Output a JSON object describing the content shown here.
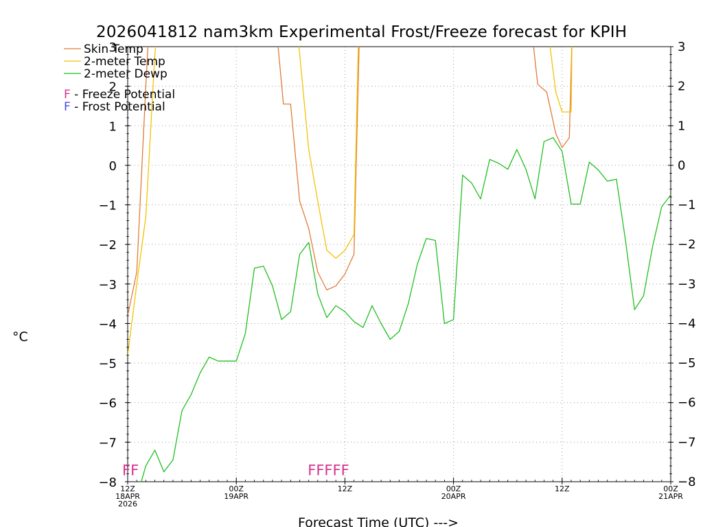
{
  "colors": {
    "skin": "#e07a3a",
    "temp2m": "#f2c200",
    "dewp2m": "#1fbf1f",
    "freeze": "#d4338f",
    "frost": "#4a4ae0"
  },
  "chart_data": {
    "type": "line",
    "title": "2026041812 nam3km Experimental Frost/Freeze forecast for KPIH",
    "xlabel": "Forecast Time (UTC) --->",
    "ylabel": "°C",
    "ylim": [
      -8,
      3
    ],
    "xlim": [
      0,
      60
    ],
    "grid": true,
    "y_ticks": [
      -8,
      -7,
      -6,
      -5,
      -4,
      -3,
      -2,
      -1,
      0,
      1,
      2,
      3
    ],
    "y_tick_labels": [
      "−8",
      "−7",
      "−6",
      "−5",
      "−4",
      "−3",
      "−2",
      "−1",
      "0",
      "1",
      "2",
      "3"
    ],
    "x_ticks": [
      {
        "x": 0,
        "lines": [
          "12Z",
          "18APR",
          "2026"
        ]
      },
      {
        "x": 12,
        "lines": [
          "00Z",
          "19APR"
        ]
      },
      {
        "x": 24,
        "lines": [
          "12Z"
        ]
      },
      {
        "x": 36,
        "lines": [
          "00Z",
          "20APR"
        ]
      },
      {
        "x": 48,
        "lines": [
          "12Z"
        ]
      },
      {
        "x": 60,
        "lines": [
          "00Z",
          "21APR"
        ]
      }
    ],
    "legend": {
      "placement": "top-left",
      "series": [
        {
          "key": "skin",
          "label": "Skin Temp"
        },
        {
          "key": "temp2m",
          "label": "2-meter Temp"
        },
        {
          "key": "dewp2m",
          "label": "2-meter Dewp"
        }
      ],
      "flags": [
        {
          "key": "freeze",
          "letter": "F",
          "text": " - Freeze Potential"
        },
        {
          "key": "frost",
          "letter": "F",
          "text": " - Frost Potential"
        }
      ]
    },
    "series": [
      {
        "name": "Skin Temp",
        "key": "skin",
        "points": [
          [
            0,
            -3.8
          ],
          [
            1,
            -2.7
          ],
          [
            2,
            2.0
          ],
          [
            2.3,
            3.3
          ],
          [
            16.5,
            3.3
          ],
          [
            17.2,
            1.55
          ],
          [
            18,
            1.55
          ],
          [
            19,
            -0.9
          ],
          [
            20,
            -1.6
          ],
          [
            21,
            -2.7
          ],
          [
            22,
            -3.15
          ],
          [
            23,
            -3.05
          ],
          [
            24,
            -2.75
          ],
          [
            25,
            -2.25
          ],
          [
            25.6,
            3.3
          ],
          [
            44.7,
            3.3
          ],
          [
            45.3,
            2.05
          ],
          [
            46.3,
            1.85
          ],
          [
            47.3,
            0.8
          ],
          [
            48,
            0.45
          ],
          [
            48.8,
            0.7
          ],
          [
            49.1,
            3.3
          ]
        ]
      },
      {
        "name": "2-meter Temp",
        "key": "temp2m",
        "points": [
          [
            0,
            -4.8
          ],
          [
            1,
            -3.0
          ],
          [
            2,
            -1.3
          ],
          [
            3,
            2.8
          ],
          [
            3.2,
            3.3
          ],
          [
            18.8,
            3.3
          ],
          [
            20,
            0.4
          ],
          [
            21,
            -0.9
          ],
          [
            22,
            -2.15
          ],
          [
            23,
            -2.35
          ],
          [
            24,
            -2.15
          ],
          [
            25,
            -1.75
          ],
          [
            25.5,
            3.3
          ],
          [
            46.5,
            3.3
          ],
          [
            47.3,
            1.85
          ],
          [
            48,
            1.35
          ],
          [
            49,
            1.35
          ],
          [
            49.1,
            3.3
          ]
        ]
      },
      {
        "name": "2-meter Dewp",
        "key": "dewp2m",
        "points": [
          [
            1.5,
            -8.0
          ],
          [
            2,
            -7.6
          ],
          [
            3,
            -7.2
          ],
          [
            4,
            -7.75
          ],
          [
            5,
            -7.45
          ],
          [
            6,
            -6.2
          ],
          [
            7,
            -5.8
          ],
          [
            8,
            -5.25
          ],
          [
            9,
            -4.85
          ],
          [
            10,
            -4.95
          ],
          [
            11,
            -4.95
          ],
          [
            12,
            -4.95
          ],
          [
            13,
            -4.25
          ],
          [
            14,
            -2.6
          ],
          [
            15,
            -2.55
          ],
          [
            16,
            -3.05
          ],
          [
            17,
            -3.9
          ],
          [
            18,
            -3.7
          ],
          [
            19,
            -2.25
          ],
          [
            20,
            -1.95
          ],
          [
            21,
            -3.25
          ],
          [
            22,
            -3.85
          ],
          [
            23,
            -3.55
          ],
          [
            24,
            -3.7
          ],
          [
            25,
            -3.95
          ],
          [
            26,
            -4.1
          ],
          [
            27,
            -3.55
          ],
          [
            28,
            -4.0
          ],
          [
            29,
            -4.4
          ],
          [
            30,
            -4.2
          ],
          [
            31,
            -3.5
          ],
          [
            32,
            -2.5
          ],
          [
            33,
            -1.85
          ],
          [
            34,
            -1.9
          ],
          [
            35,
            -4.0
          ],
          [
            36,
            -3.9
          ],
          [
            37,
            -0.25
          ],
          [
            38,
            -0.45
          ],
          [
            39,
            -0.85
          ],
          [
            40,
            0.15
          ],
          [
            41,
            0.05
          ],
          [
            42,
            -0.1
          ],
          [
            43,
            0.4
          ],
          [
            44,
            -0.1
          ],
          [
            45,
            -0.85
          ],
          [
            46,
            0.6
          ],
          [
            47,
            0.7
          ],
          [
            48,
            0.35
          ],
          [
            49,
            -0.98
          ],
          [
            50,
            -0.98
          ],
          [
            51,
            0.08
          ],
          [
            52,
            -0.12
          ],
          [
            53,
            -0.4
          ],
          [
            54,
            -0.35
          ],
          [
            55,
            -1.9
          ],
          [
            56,
            -3.65
          ],
          [
            57,
            -3.3
          ],
          [
            58,
            -2.05
          ],
          [
            59,
            -1.05
          ],
          [
            60,
            -0.75
          ]
        ]
      }
    ],
    "potential_markers": [
      {
        "key": "freeze",
        "text": "FF",
        "x_start": 0
      },
      {
        "key": "freeze",
        "text": "FFFFF",
        "x_start": 20.5
      }
    ]
  }
}
